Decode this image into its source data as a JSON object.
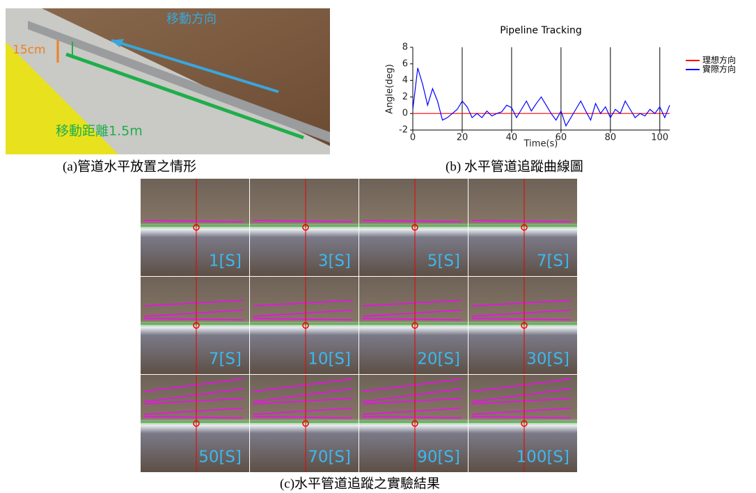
{
  "photo": {
    "labels": [
      "移動方向",
      "15cm",
      "移動距離1.5m"
    ],
    "caption": "(a)管道水平放置之情形"
  },
  "chart_data": {
    "type": "line",
    "title": "Pipeline Tracking",
    "xlabel": "Time(s)",
    "ylabel": "Angle(deg)",
    "xlim": [
      0,
      104
    ],
    "xticks": [
      0,
      20,
      40,
      60,
      80,
      100
    ],
    "ylim": [
      -2,
      8
    ],
    "yticks": [
      -2,
      0,
      2,
      4,
      6,
      8
    ],
    "vgrid": true,
    "legend": "right",
    "series": [
      {
        "name": "理想方向",
        "color": "#ff0000",
        "x": [
          0,
          104
        ],
        "values": [
          0,
          0
        ]
      },
      {
        "name": "實際方向",
        "color": "#0000ff",
        "x": [
          0,
          2,
          4,
          6,
          8,
          10,
          12,
          14,
          16,
          18,
          20,
          22,
          24,
          26,
          28,
          30,
          32,
          34,
          36,
          38,
          40,
          42,
          44,
          46,
          48,
          50,
          52,
          54,
          56,
          58,
          60,
          62,
          64,
          66,
          68,
          70,
          72,
          74,
          76,
          78,
          80,
          82,
          84,
          86,
          88,
          90,
          92,
          94,
          96,
          98,
          100,
          102,
          104
        ],
        "values": [
          0.5,
          5.5,
          3.5,
          1,
          3,
          1.5,
          -0.8,
          -0.5,
          0,
          0.5,
          1.5,
          0.8,
          -0.5,
          0,
          -0.5,
          0.3,
          -0.3,
          0,
          0.2,
          1,
          0.7,
          -0.5,
          0.5,
          1.5,
          0.3,
          1.2,
          2,
          1,
          0,
          -0.8,
          0.3,
          -1.5,
          -0.5,
          0.5,
          1.5,
          0.3,
          -0.8,
          1.2,
          0,
          0.8,
          -0.5,
          0.5,
          0,
          1.5,
          0.5,
          -0.5,
          0,
          -0.3,
          0.5,
          0,
          0.8,
          -0.5,
          1
        ]
      }
    ]
  },
  "chart_caption": "(b) 水平管道追蹤曲線圖",
  "tiles": [
    "1[S]",
    "3[S]",
    "5[S]",
    "7[S]",
    "7[S]",
    "10[S]",
    "20[S]",
    "30[S]",
    "50[S]",
    "70[S]",
    "90[S]",
    "100[S]"
  ],
  "tiles_caption": "(c)水平管道追蹤之實驗結果"
}
